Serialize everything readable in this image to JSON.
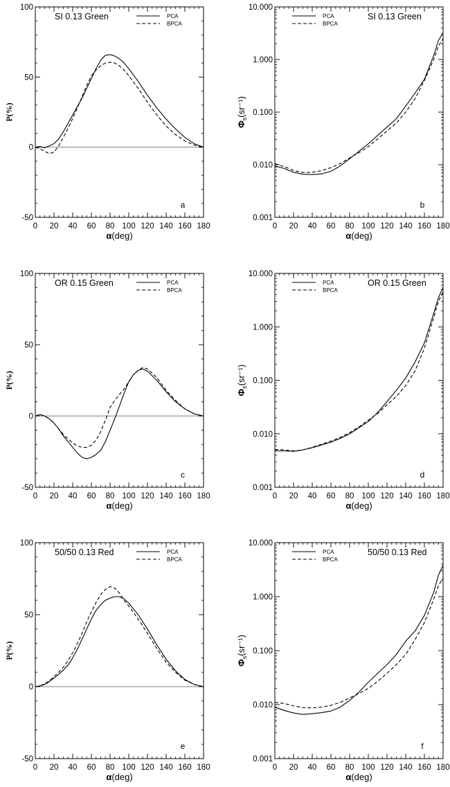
{
  "figure": {
    "legend_labels": [
      "PCA",
      "BPCA"
    ]
  },
  "chart_data": [
    {
      "id": "a",
      "type": "line",
      "scale": "linear",
      "title": "SI 0.13 Green",
      "panel_label": "a",
      "xlabel": "α(deg)",
      "ylabel": "P(%)",
      "xlim": [
        0,
        180
      ],
      "ylim": [
        -50,
        100
      ],
      "xticks": [
        0,
        20,
        40,
        60,
        80,
        100,
        120,
        140,
        160,
        180
      ],
      "yticks": [
        -50,
        0,
        50,
        100
      ],
      "ytick_labels": [
        "-50",
        "0",
        "50",
        "100"
      ],
      "zero_line": true,
      "legend_position": "top-right",
      "series": [
        {
          "name": "PCA",
          "style": "solid",
          "x": [
            0,
            5,
            10,
            15,
            20,
            25,
            30,
            35,
            40,
            45,
            50,
            55,
            60,
            65,
            70,
            75,
            80,
            85,
            90,
            95,
            100,
            110,
            120,
            130,
            140,
            150,
            160,
            170,
            180
          ],
          "y": [
            0,
            0.5,
            -0.5,
            1,
            2.5,
            6,
            11,
            17,
            23,
            29,
            35,
            42,
            49,
            56,
            62,
            65.5,
            66,
            65,
            63,
            60,
            56,
            47,
            37,
            28,
            20,
            13,
            7,
            2.5,
            0
          ]
        },
        {
          "name": "BPCA",
          "style": "dashed",
          "x": [
            0,
            5,
            10,
            15,
            20,
            25,
            30,
            35,
            40,
            45,
            50,
            55,
            60,
            65,
            70,
            75,
            80,
            85,
            90,
            95,
            100,
            110,
            120,
            130,
            140,
            150,
            160,
            170,
            180
          ],
          "y": [
            0,
            -1,
            -3,
            -4.5,
            -3.5,
            1,
            7,
            13.5,
            20.5,
            28,
            36,
            44,
            51,
            55,
            58,
            60,
            60.5,
            60,
            58,
            55,
            51,
            42,
            32,
            23,
            15,
            9,
            4.5,
            1.5,
            0
          ]
        }
      ]
    },
    {
      "id": "b",
      "type": "line",
      "scale": "log",
      "title": "SI 0.13 Green",
      "panel_label": "b",
      "xlabel": "α(deg)",
      "ylabel": "Φs(sr⁻¹)",
      "xlim": [
        0,
        180
      ],
      "ylim": [
        0.001,
        10
      ],
      "xticks": [
        0,
        20,
        40,
        60,
        80,
        100,
        120,
        140,
        160,
        180
      ],
      "yticks": [
        0.001,
        0.01,
        0.1,
        1,
        10
      ],
      "ytick_labels": [
        "0.001",
        "0.010",
        "0.100",
        "1.000",
        "10.000"
      ],
      "legend_position": "top-left",
      "series": [
        {
          "name": "PCA",
          "style": "solid",
          "x": [
            0,
            10,
            20,
            30,
            40,
            50,
            60,
            70,
            80,
            90,
            100,
            110,
            120,
            130,
            140,
            150,
            160,
            170,
            175,
            180
          ],
          "y": [
            0.0095,
            0.0085,
            0.0072,
            0.0066,
            0.0065,
            0.0067,
            0.0075,
            0.0095,
            0.013,
            0.018,
            0.025,
            0.036,
            0.052,
            0.075,
            0.13,
            0.23,
            0.42,
            1.2,
            2.3,
            3.2
          ]
        },
        {
          "name": "BPCA",
          "style": "dashed",
          "x": [
            0,
            10,
            20,
            30,
            40,
            50,
            60,
            70,
            80,
            90,
            100,
            110,
            120,
            130,
            140,
            150,
            160,
            170,
            175,
            180
          ],
          "y": [
            0.0105,
            0.0092,
            0.0078,
            0.0071,
            0.0072,
            0.0077,
            0.0088,
            0.0105,
            0.0135,
            0.017,
            0.022,
            0.031,
            0.044,
            0.062,
            0.1,
            0.18,
            0.4,
            1,
            1.8,
            2.5
          ]
        }
      ]
    },
    {
      "id": "c",
      "type": "line",
      "scale": "linear",
      "title": "OR 0.15 Green",
      "panel_label": "c",
      "xlabel": "α(deg)",
      "ylabel": "P(%)",
      "xlim": [
        0,
        180
      ],
      "ylim": [
        -50,
        100
      ],
      "xticks": [
        0,
        20,
        40,
        60,
        80,
        100,
        120,
        140,
        160,
        180
      ],
      "yticks": [
        -50,
        0,
        50,
        100
      ],
      "ytick_labels": [
        "-50",
        "0",
        "50",
        "100"
      ],
      "zero_line": true,
      "legend_position": "top-right",
      "series": [
        {
          "name": "PCA",
          "style": "solid",
          "x": [
            0,
            5,
            10,
            15,
            20,
            25,
            30,
            35,
            40,
            45,
            50,
            55,
            60,
            65,
            70,
            75,
            80,
            85,
            90,
            95,
            100,
            105,
            110,
            115,
            120,
            130,
            140,
            150,
            160,
            170,
            180
          ],
          "y": [
            0,
            1,
            0,
            -2,
            -5,
            -9,
            -14,
            -18,
            -22,
            -26,
            -29,
            -30,
            -29,
            -27,
            -24,
            -18,
            -10,
            -2,
            7,
            16,
            24,
            29,
            32,
            33,
            31.5,
            25,
            17,
            10,
            5,
            1.5,
            0
          ]
        },
        {
          "name": "BPCA",
          "style": "dashed",
          "x": [
            0,
            5,
            10,
            15,
            20,
            25,
            30,
            35,
            40,
            45,
            50,
            55,
            60,
            65,
            70,
            75,
            80,
            85,
            90,
            95,
            100,
            105,
            110,
            115,
            120,
            130,
            140,
            150,
            160,
            170,
            180
          ],
          "y": [
            0,
            1,
            0,
            -2,
            -5,
            -9,
            -13,
            -16,
            -19,
            -21,
            -22,
            -22,
            -20.5,
            -17,
            -11,
            -3,
            6,
            11,
            15,
            19,
            24,
            29,
            32,
            34,
            33,
            27,
            18,
            11,
            5,
            1.5,
            0
          ]
        }
      ]
    },
    {
      "id": "d",
      "type": "line",
      "scale": "log",
      "title": "OR 0.15 Green",
      "panel_label": "d",
      "xlabel": "α(deg)",
      "ylabel": "Φs(sr⁻¹)",
      "xlim": [
        0,
        180
      ],
      "ylim": [
        0.001,
        10
      ],
      "xticks": [
        0,
        20,
        40,
        60,
        80,
        100,
        120,
        140,
        160,
        180
      ],
      "yticks": [
        0.001,
        0.01,
        0.1,
        1,
        10
      ],
      "ytick_labels": [
        "0.001",
        "0.010",
        "0.100",
        "1.000",
        "10.000"
      ],
      "legend_position": "top-left",
      "series": [
        {
          "name": "PCA",
          "style": "solid",
          "x": [
            0,
            10,
            20,
            30,
            40,
            50,
            60,
            70,
            80,
            90,
            100,
            110,
            120,
            130,
            140,
            150,
            160,
            170,
            175,
            180
          ],
          "y": [
            0.0048,
            0.0048,
            0.0047,
            0.005,
            0.0055,
            0.0062,
            0.007,
            0.0082,
            0.01,
            0.013,
            0.017,
            0.025,
            0.04,
            0.065,
            0.11,
            0.22,
            0.5,
            1.8,
            3.5,
            5.5
          ]
        },
        {
          "name": "BPCA",
          "style": "dashed",
          "x": [
            0,
            10,
            20,
            30,
            40,
            50,
            60,
            70,
            80,
            90,
            100,
            110,
            120,
            130,
            140,
            150,
            160,
            170,
            175,
            180
          ],
          "y": [
            0.0051,
            0.005,
            0.0048,
            0.005,
            0.0056,
            0.0064,
            0.0073,
            0.0086,
            0.0105,
            0.0135,
            0.018,
            0.024,
            0.035,
            0.05,
            0.08,
            0.15,
            0.4,
            1.5,
            3,
            4.5
          ]
        }
      ]
    },
    {
      "id": "e",
      "type": "line",
      "scale": "linear",
      "title": "50/50 0.13 Red",
      "panel_label": "e",
      "xlabel": "α(deg)",
      "ylabel": "P(%)",
      "xlim": [
        0,
        180
      ],
      "ylim": [
        -50,
        100
      ],
      "xticks": [
        0,
        20,
        40,
        60,
        80,
        100,
        120,
        140,
        160,
        180
      ],
      "yticks": [
        -50,
        0,
        50,
        100
      ],
      "ytick_labels": [
        "-50",
        "0",
        "50",
        "100"
      ],
      "zero_line": true,
      "legend_position": "top-right",
      "series": [
        {
          "name": "PCA",
          "style": "solid",
          "x": [
            0,
            5,
            10,
            15,
            20,
            25,
            30,
            35,
            40,
            45,
            50,
            55,
            60,
            65,
            70,
            75,
            80,
            85,
            90,
            95,
            100,
            110,
            120,
            130,
            140,
            150,
            160,
            170,
            180
          ],
          "y": [
            0,
            0.5,
            1.5,
            3.5,
            6,
            8.5,
            11.5,
            15,
            20,
            26,
            33,
            40,
            47,
            53,
            57,
            60,
            61.5,
            62.5,
            62.5,
            61,
            58,
            50,
            40,
            29,
            19,
            11,
            5,
            1.5,
            0
          ]
        },
        {
          "name": "BPCA",
          "style": "dashed",
          "x": [
            0,
            5,
            10,
            15,
            20,
            25,
            30,
            35,
            40,
            45,
            50,
            55,
            60,
            65,
            70,
            75,
            80,
            85,
            90,
            95,
            100,
            110,
            120,
            130,
            140,
            150,
            160,
            170,
            180
          ],
          "y": [
            0,
            0.5,
            2,
            4,
            7,
            10,
            13.5,
            18,
            23.5,
            30,
            37,
            45,
            52,
            58.5,
            64,
            67.5,
            69.5,
            68.5,
            65,
            60,
            56,
            47,
            37,
            26.5,
            17,
            10,
            4.5,
            1.5,
            0
          ]
        }
      ]
    },
    {
      "id": "f",
      "type": "line",
      "scale": "log",
      "title": "50/50 0.13 Red",
      "panel_label": "f",
      "xlabel": "α(deg)",
      "ylabel": "Φs(sr⁻¹)",
      "xlim": [
        0,
        180
      ],
      "ylim": [
        0.001,
        10
      ],
      "xticks": [
        0,
        20,
        40,
        60,
        80,
        100,
        120,
        140,
        160,
        180
      ],
      "yticks": [
        0.001,
        0.01,
        0.1,
        1,
        10
      ],
      "ytick_labels": [
        "0.001",
        "0.010",
        "0.100",
        "1.000",
        "10.000"
      ],
      "legend_position": "top-left",
      "series": [
        {
          "name": "PCA",
          "style": "solid",
          "x": [
            0,
            10,
            20,
            30,
            40,
            50,
            60,
            70,
            80,
            90,
            100,
            110,
            120,
            130,
            140,
            150,
            160,
            170,
            175,
            180
          ],
          "y": [
            0.009,
            0.0078,
            0.007,
            0.0066,
            0.0068,
            0.0071,
            0.0076,
            0.009,
            0.012,
            0.017,
            0.026,
            0.038,
            0.055,
            0.085,
            0.15,
            0.23,
            0.45,
            1.2,
            2.5,
            3.8
          ]
        },
        {
          "name": "BPCA",
          "style": "dashed",
          "x": [
            0,
            10,
            20,
            30,
            40,
            50,
            60,
            70,
            80,
            90,
            100,
            110,
            120,
            130,
            140,
            150,
            160,
            170,
            175,
            180
          ],
          "y": [
            0.011,
            0.0105,
            0.0095,
            0.0088,
            0.0087,
            0.009,
            0.0097,
            0.011,
            0.0133,
            0.016,
            0.02,
            0.027,
            0.038,
            0.055,
            0.085,
            0.16,
            0.33,
            0.9,
            1.6,
            2.2
          ]
        }
      ]
    }
  ]
}
